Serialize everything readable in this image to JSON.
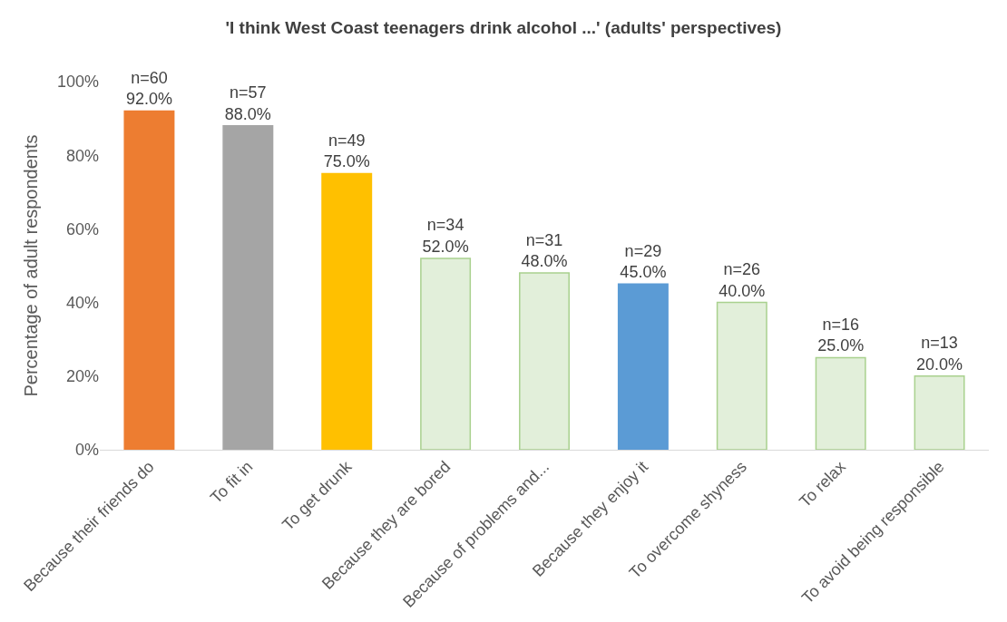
{
  "chart_data": {
    "type": "bar",
    "title": "'I think West Coast teenagers drink alcohol ...' (adults' perspectives)",
    "ylabel": "Percentage of adult respondents",
    "categories": [
      "Because their friends do",
      "To fit in",
      "To get drunk",
      "Because they are bored",
      "Because of problems and...",
      "Because they enjoy it",
      "To overcome shyness",
      "To relax",
      "To avoid being responsible"
    ],
    "values": [
      92,
      88,
      75,
      52,
      48,
      45,
      40,
      25,
      20
    ],
    "colors": [
      "#ed7d31",
      "#a5a5a5",
      "#ffc000",
      "#e2efda",
      "#e2efda",
      "#5b9bd5",
      "#e2efda",
      "#e2efda",
      "#e2efda"
    ],
    "value_labels": [
      "n=60\n92.0%",
      "n=57\n88.0%",
      "n=49\n75.0%",
      "n=34\n52.0%",
      "n=31\n48.0%",
      "n=29\n45.0%",
      "n=26\n40.0%",
      "n=16\n25.0%",
      "n=13\n20.0%"
    ],
    "ylim": [
      0,
      100
    ],
    "yticks": [
      {
        "value": 0,
        "label": "0%"
      },
      {
        "value": 20,
        "label": "20%"
      },
      {
        "value": 40,
        "label": "40%"
      },
      {
        "value": 60,
        "label": "60%"
      },
      {
        "value": 80,
        "label": "80%"
      },
      {
        "value": 100,
        "label": "100%"
      }
    ]
  }
}
